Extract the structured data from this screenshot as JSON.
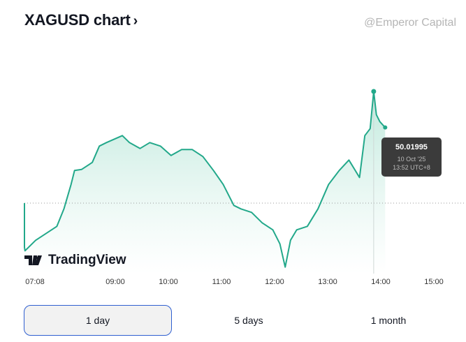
{
  "header": {
    "title": "XAGUSD chart",
    "chevron": "›"
  },
  "tooltip": {
    "value": "50.01995",
    "date": "10 Oct '25",
    "time": "13:52 UTC+8"
  },
  "logo": {
    "text": "TradingView"
  },
  "ranges": [
    {
      "label": "1 day",
      "selected": true
    },
    {
      "label": "5 days",
      "selected": false
    },
    {
      "label": "1 month",
      "selected": false
    }
  ],
  "watermark": "@Emperor Capital",
  "colors": {
    "line": "#22a88a",
    "fill": "#cdeee4",
    "tooltip_bg": "#3b3b3b",
    "selected_border": "#2f5fd0"
  },
  "chart_data": {
    "type": "area",
    "title": "",
    "xlabel": "",
    "ylabel": "",
    "x_ticks": [
      "07:08",
      "09:00",
      "10:00",
      "11:00",
      "12:00",
      "13:00",
      "14:00",
      "15:00"
    ],
    "xlim": [
      "07:08",
      "15:00"
    ],
    "reference_line": 49.06,
    "grid": false,
    "x": [
      "07:08",
      "07:10",
      "07:18",
      "07:30",
      "07:42",
      "07:54",
      "08:02",
      "08:10",
      "08:14",
      "08:22",
      "08:34",
      "08:42",
      "08:50",
      "09:08",
      "09:16",
      "09:28",
      "09:39",
      "09:51",
      "10:03",
      "10:15",
      "10:27",
      "10:39",
      "10:51",
      "11:02",
      "11:14",
      "11:22",
      "11:34",
      "11:46",
      "11:58",
      "12:06",
      "12:12",
      "12:18",
      "12:25",
      "12:37",
      "12:49",
      "13:01",
      "13:13",
      "13:24",
      "13:36",
      "13:42",
      "13:48",
      "13:52",
      "13:55",
      "13:59",
      "14:05"
    ],
    "values": [
      49.06,
      48.68,
      48.65,
      48.74,
      48.8,
      48.86,
      49.01,
      49.22,
      49.34,
      49.35,
      49.41,
      49.55,
      49.58,
      49.64,
      49.58,
      49.53,
      49.58,
      49.55,
      49.47,
      49.52,
      49.52,
      49.46,
      49.34,
      49.22,
      49.04,
      49.01,
      48.98,
      48.89,
      48.83,
      48.71,
      48.51,
      48.74,
      48.83,
      48.86,
      49.01,
      49.22,
      49.34,
      49.43,
      49.28,
      49.64,
      49.7,
      50.02,
      49.82,
      49.76,
      49.71
    ],
    "highlight": {
      "x": "13:52",
      "value": 50.01995
    }
  }
}
